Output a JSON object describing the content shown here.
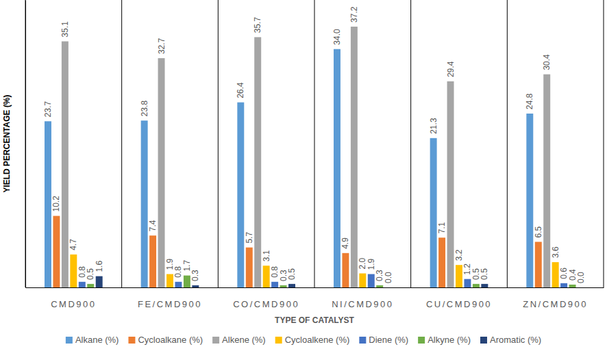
{
  "chart_data": {
    "type": "bar",
    "x_label": "TYPE OF CATALYST",
    "y_label": "YIELD PERCENTAGE (%)",
    "categories": [
      "CMD900",
      "FE/CMD900",
      "CO/CMD900",
      "NI/CMD900",
      "CU/CMD900",
      "ZN/CMD900"
    ],
    "series": [
      {
        "name": "Alkane (%)",
        "color": "#5b9bd5",
        "values": [
          23.7,
          23.8,
          26.4,
          34.0,
          21.3,
          24.8
        ],
        "value_labels": [
          "23.7",
          "23.8",
          "26.4",
          "34.0",
          "21.3",
          "24.8"
        ]
      },
      {
        "name": "Cycloalkane (%)",
        "color": "#ed7d31",
        "values": [
          10.2,
          7.4,
          5.7,
          4.9,
          7.1,
          6.5
        ],
        "value_labels": [
          "10.2",
          "7.4",
          "5.7",
          "4.9",
          "7.1",
          "6.5"
        ]
      },
      {
        "name": "Alkene (%)",
        "color": "#a5a5a5",
        "values": [
          35.1,
          32.7,
          35.7,
          37.2,
          29.4,
          30.4
        ],
        "value_labels": [
          "35.1",
          "32.7",
          "35.7",
          "37.2",
          "29.4",
          "30.4"
        ]
      },
      {
        "name": "Cycloalkene (%)",
        "color": "#ffc000",
        "values": [
          4.7,
          1.9,
          3.1,
          2.0,
          3.2,
          3.6
        ],
        "value_labels": [
          "4.7",
          "1.9",
          "3.1",
          "2.0",
          "3.2",
          "3.6"
        ]
      },
      {
        "name": "Diene (%)",
        "color": "#4472c4",
        "values": [
          0.8,
          0.8,
          0.8,
          1.9,
          1.2,
          0.6
        ],
        "value_labels": [
          "0.8",
          "0.8",
          "0.8",
          "1.9",
          "1.2",
          "0.6"
        ]
      },
      {
        "name": "Alkyne (%)",
        "color": "#70ad47",
        "values": [
          0.5,
          1.7,
          0.3,
          0.3,
          0.5,
          0.4
        ],
        "value_labels": [
          "0.5",
          "1.7",
          "0.3",
          "0.3",
          "0.5",
          "0.4"
        ]
      },
      {
        "name": "Aromatic (%)",
        "color": "#264478",
        "values": [
          1.6,
          0.3,
          0.5,
          0.0,
          0.5,
          0.0
        ],
        "value_labels": [
          "1.6",
          "0.3",
          "0.5",
          "0.0",
          "0.5",
          "0.0"
        ]
      }
    ],
    "ylim": [
      0,
      41
    ],
    "grid": false,
    "legend": "bottom",
    "data_labels": true,
    "tick_labels": "x"
  }
}
